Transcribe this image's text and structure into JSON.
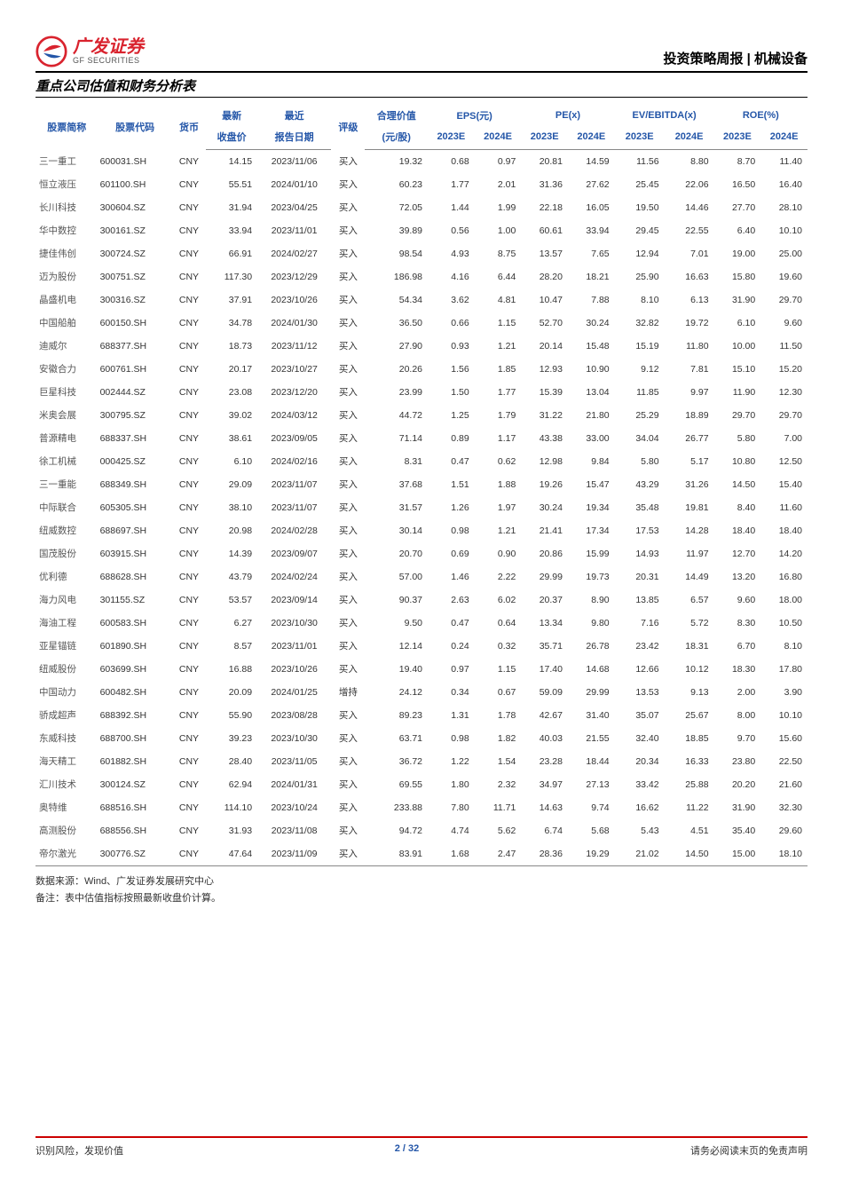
{
  "header": {
    "logo_cn": "广发证券",
    "logo_en": "GF SECURITIES",
    "right": "投资策略周报 | 机械设备"
  },
  "subtitle": "重点公司估值和财务分析表",
  "table": {
    "headers": {
      "name": "股票简称",
      "code": "股票代码",
      "currency": "货币",
      "latest": "最新",
      "recent": "最近",
      "rating": "评级",
      "fair": "合理价值",
      "eps": "EPS(元)",
      "pe": "PE(x)",
      "evebitda": "EV/EBITDA(x)",
      "roe": "ROE(%)",
      "close": "收盘价",
      "date": "报告日期",
      "pershare": "(元/股)",
      "y2023e": "2023E",
      "y2024e": "2024E"
    },
    "rows": [
      [
        "三一重工",
        "600031.SH",
        "CNY",
        "14.15",
        "2023/11/06",
        "买入",
        "19.32",
        "0.68",
        "0.97",
        "20.81",
        "14.59",
        "11.56",
        "8.80",
        "8.70",
        "11.40"
      ],
      [
        "恒立液压",
        "601100.SH",
        "CNY",
        "55.51",
        "2024/01/10",
        "买入",
        "60.23",
        "1.77",
        "2.01",
        "31.36",
        "27.62",
        "25.45",
        "22.06",
        "16.50",
        "16.40"
      ],
      [
        "长川科技",
        "300604.SZ",
        "CNY",
        "31.94",
        "2023/04/25",
        "买入",
        "72.05",
        "1.44",
        "1.99",
        "22.18",
        "16.05",
        "19.50",
        "14.46",
        "27.70",
        "28.10"
      ],
      [
        "华中数控",
        "300161.SZ",
        "CNY",
        "33.94",
        "2023/11/01",
        "买入",
        "39.89",
        "0.56",
        "1.00",
        "60.61",
        "33.94",
        "29.45",
        "22.55",
        "6.40",
        "10.10"
      ],
      [
        "捷佳伟创",
        "300724.SZ",
        "CNY",
        "66.91",
        "2024/02/27",
        "买入",
        "98.54",
        "4.93",
        "8.75",
        "13.57",
        "7.65",
        "12.94",
        "7.01",
        "19.00",
        "25.00"
      ],
      [
        "迈为股份",
        "300751.SZ",
        "CNY",
        "117.30",
        "2023/12/29",
        "买入",
        "186.98",
        "4.16",
        "6.44",
        "28.20",
        "18.21",
        "25.90",
        "16.63",
        "15.80",
        "19.60"
      ],
      [
        "晶盛机电",
        "300316.SZ",
        "CNY",
        "37.91",
        "2023/10/26",
        "买入",
        "54.34",
        "3.62",
        "4.81",
        "10.47",
        "7.88",
        "8.10",
        "6.13",
        "31.90",
        "29.70"
      ],
      [
        "中国船舶",
        "600150.SH",
        "CNY",
        "34.78",
        "2024/01/30",
        "买入",
        "36.50",
        "0.66",
        "1.15",
        "52.70",
        "30.24",
        "32.82",
        "19.72",
        "6.10",
        "9.60"
      ],
      [
        "迪威尔",
        "688377.SH",
        "CNY",
        "18.73",
        "2023/11/12",
        "买入",
        "27.90",
        "0.93",
        "1.21",
        "20.14",
        "15.48",
        "15.19",
        "11.80",
        "10.00",
        "11.50"
      ],
      [
        "安徽合力",
        "600761.SH",
        "CNY",
        "20.17",
        "2023/10/27",
        "买入",
        "20.26",
        "1.56",
        "1.85",
        "12.93",
        "10.90",
        "9.12",
        "7.81",
        "15.10",
        "15.20"
      ],
      [
        "巨星科技",
        "002444.SZ",
        "CNY",
        "23.08",
        "2023/12/20",
        "买入",
        "23.99",
        "1.50",
        "1.77",
        "15.39",
        "13.04",
        "11.85",
        "9.97",
        "11.90",
        "12.30"
      ],
      [
        "米奥会展",
        "300795.SZ",
        "CNY",
        "39.02",
        "2024/03/12",
        "买入",
        "44.72",
        "1.25",
        "1.79",
        "31.22",
        "21.80",
        "25.29",
        "18.89",
        "29.70",
        "29.70"
      ],
      [
        "普源精电",
        "688337.SH",
        "CNY",
        "38.61",
        "2023/09/05",
        "买入",
        "71.14",
        "0.89",
        "1.17",
        "43.38",
        "33.00",
        "34.04",
        "26.77",
        "5.80",
        "7.00"
      ],
      [
        "徐工机械",
        "000425.SZ",
        "CNY",
        "6.10",
        "2024/02/16",
        "买入",
        "8.31",
        "0.47",
        "0.62",
        "12.98",
        "9.84",
        "5.80",
        "5.17",
        "10.80",
        "12.50"
      ],
      [
        "三一重能",
        "688349.SH",
        "CNY",
        "29.09",
        "2023/11/07",
        "买入",
        "37.68",
        "1.51",
        "1.88",
        "19.26",
        "15.47",
        "43.29",
        "31.26",
        "14.50",
        "15.40"
      ],
      [
        "中际联合",
        "605305.SH",
        "CNY",
        "38.10",
        "2023/11/07",
        "买入",
        "31.57",
        "1.26",
        "1.97",
        "30.24",
        "19.34",
        "35.48",
        "19.81",
        "8.40",
        "11.60"
      ],
      [
        "纽威数控",
        "688697.SH",
        "CNY",
        "20.98",
        "2024/02/28",
        "买入",
        "30.14",
        "0.98",
        "1.21",
        "21.41",
        "17.34",
        "17.53",
        "14.28",
        "18.40",
        "18.40"
      ],
      [
        "国茂股份",
        "603915.SH",
        "CNY",
        "14.39",
        "2023/09/07",
        "买入",
        "20.70",
        "0.69",
        "0.90",
        "20.86",
        "15.99",
        "14.93",
        "11.97",
        "12.70",
        "14.20"
      ],
      [
        "优利德",
        "688628.SH",
        "CNY",
        "43.79",
        "2024/02/24",
        "买入",
        "57.00",
        "1.46",
        "2.22",
        "29.99",
        "19.73",
        "20.31",
        "14.49",
        "13.20",
        "16.80"
      ],
      [
        "海力风电",
        "301155.SZ",
        "CNY",
        "53.57",
        "2023/09/14",
        "买入",
        "90.37",
        "2.63",
        "6.02",
        "20.37",
        "8.90",
        "13.85",
        "6.57",
        "9.60",
        "18.00"
      ],
      [
        "海油工程",
        "600583.SH",
        "CNY",
        "6.27",
        "2023/10/30",
        "买入",
        "9.50",
        "0.47",
        "0.64",
        "13.34",
        "9.80",
        "7.16",
        "5.72",
        "8.30",
        "10.50"
      ],
      [
        "亚星锚链",
        "601890.SH",
        "CNY",
        "8.57",
        "2023/11/01",
        "买入",
        "12.14",
        "0.24",
        "0.32",
        "35.71",
        "26.78",
        "23.42",
        "18.31",
        "6.70",
        "8.10"
      ],
      [
        "纽威股份",
        "603699.SH",
        "CNY",
        "16.88",
        "2023/10/26",
        "买入",
        "19.40",
        "0.97",
        "1.15",
        "17.40",
        "14.68",
        "12.66",
        "10.12",
        "18.30",
        "17.80"
      ],
      [
        "中国动力",
        "600482.SH",
        "CNY",
        "20.09",
        "2024/01/25",
        "增持",
        "24.12",
        "0.34",
        "0.67",
        "59.09",
        "29.99",
        "13.53",
        "9.13",
        "2.00",
        "3.90"
      ],
      [
        "骄成超声",
        "688392.SH",
        "CNY",
        "55.90",
        "2023/08/28",
        "买入",
        "89.23",
        "1.31",
        "1.78",
        "42.67",
        "31.40",
        "35.07",
        "25.67",
        "8.00",
        "10.10"
      ],
      [
        "东威科技",
        "688700.SH",
        "CNY",
        "39.23",
        "2023/10/30",
        "买入",
        "63.71",
        "0.98",
        "1.82",
        "40.03",
        "21.55",
        "32.40",
        "18.85",
        "9.70",
        "15.60"
      ],
      [
        "海天精工",
        "601882.SH",
        "CNY",
        "28.40",
        "2023/11/05",
        "买入",
        "36.72",
        "1.22",
        "1.54",
        "23.28",
        "18.44",
        "20.34",
        "16.33",
        "23.80",
        "22.50"
      ],
      [
        "汇川技术",
        "300124.SZ",
        "CNY",
        "62.94",
        "2024/01/31",
        "买入",
        "69.55",
        "1.80",
        "2.32",
        "34.97",
        "27.13",
        "33.42",
        "25.88",
        "20.20",
        "21.60"
      ],
      [
        "奥特维",
        "688516.SH",
        "CNY",
        "114.10",
        "2023/10/24",
        "买入",
        "233.88",
        "7.80",
        "11.71",
        "14.63",
        "9.74",
        "16.62",
        "11.22",
        "31.90",
        "32.30"
      ],
      [
        "高测股份",
        "688556.SH",
        "CNY",
        "31.93",
        "2023/11/08",
        "买入",
        "94.72",
        "4.74",
        "5.62",
        "6.74",
        "5.68",
        "5.43",
        "4.51",
        "35.40",
        "29.60"
      ],
      [
        "帝尔激光",
        "300776.SZ",
        "CNY",
        "47.64",
        "2023/11/09",
        "买入",
        "83.91",
        "1.68",
        "2.47",
        "28.36",
        "19.29",
        "21.02",
        "14.50",
        "15.00",
        "18.10"
      ]
    ]
  },
  "notes": {
    "source": "数据来源：Wind、广发证券发展研究中心",
    "remark": "备注：表中估值指标按照最新收盘价计算。"
  },
  "footer": {
    "left": "识别风险，发现价值",
    "page": "2 / 32",
    "right": "请务必阅读末页的免责声明"
  }
}
